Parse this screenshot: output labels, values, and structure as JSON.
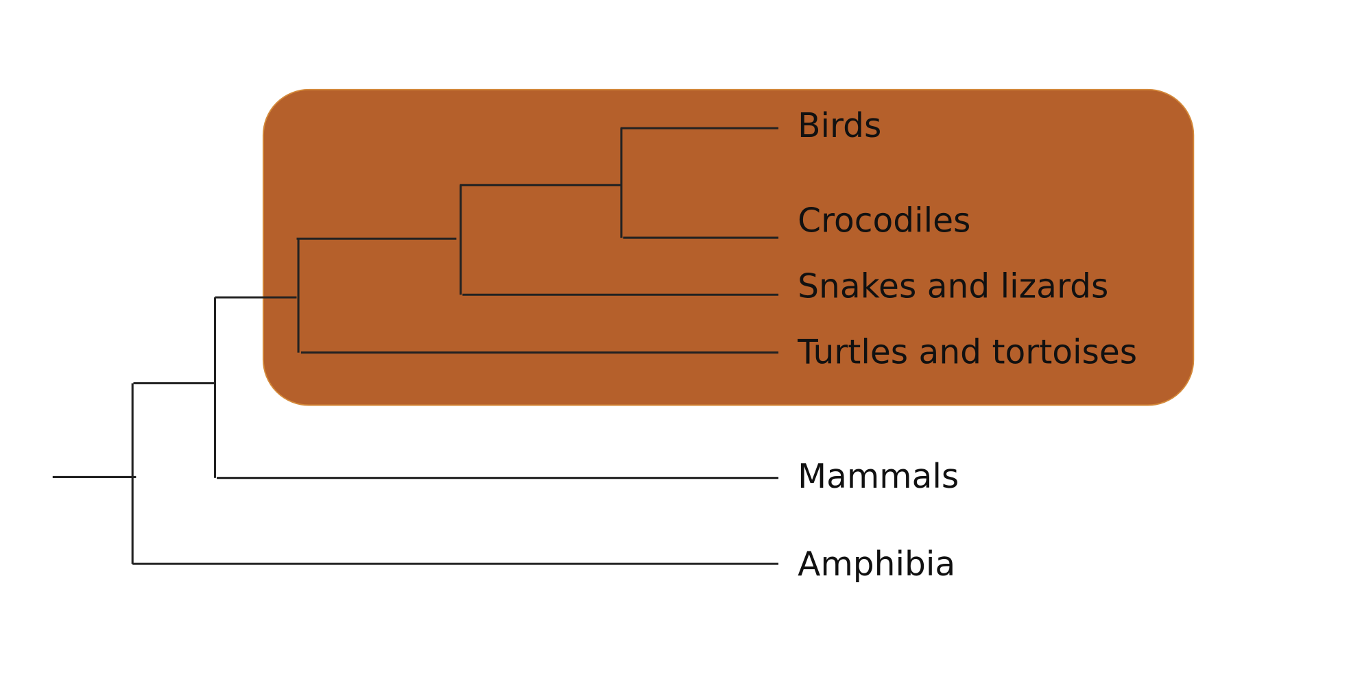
{
  "nodes": [
    {
      "label": "Birds"
    },
    {
      "label": "Crocodiles"
    },
    {
      "label": "Snakes and lizards"
    },
    {
      "label": "Turtles and tortoises"
    },
    {
      "label": "Mammals"
    },
    {
      "label": "Amphibia"
    }
  ]
}
